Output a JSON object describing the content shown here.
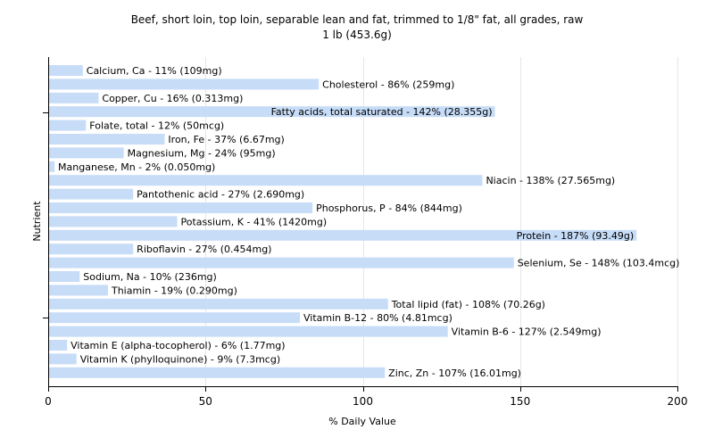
{
  "chart_data": {
    "type": "bar",
    "orientation": "horizontal",
    "title": "Beef, short loin, top loin, separable lean and fat, trimmed to 1/8\" fat, all grades, raw",
    "subtitle": "1 lb (453.6g)",
    "xlabel": "% Daily Value",
    "ylabel": "Nutrient",
    "xlim": [
      0,
      200
    ],
    "xticks": [
      0,
      50,
      100,
      150,
      200
    ],
    "grid": true,
    "bar_color": "#c6dcf7",
    "categories": [
      "Calcium, Ca",
      "Cholesterol",
      "Copper, Cu",
      "Fatty acids, total saturated",
      "Folate, total",
      "Iron, Fe",
      "Magnesium, Mg",
      "Manganese, Mn",
      "Niacin",
      "Pantothenic acid",
      "Phosphorus, P",
      "Potassium, K",
      "Protein",
      "Riboflavin",
      "Selenium, Se",
      "Sodium, Na",
      "Thiamin",
      "Total lipid (fat)",
      "Vitamin B-12",
      "Vitamin B-6",
      "Vitamin E (alpha-tocopherol)",
      "Vitamin K (phylloquinone)",
      "Zinc, Zn"
    ],
    "values": [
      11,
      86,
      16,
      142,
      12,
      37,
      24,
      2,
      138,
      27,
      84,
      41,
      187,
      27,
      148,
      10,
      19,
      108,
      80,
      127,
      6,
      9,
      107
    ],
    "labels": [
      "Calcium, Ca - 11% (109mg)",
      "Cholesterol - 86% (259mg)",
      "Copper, Cu - 16% (0.313mg)",
      "Fatty acids, total saturated - 142% (28.355g)",
      "Folate, total - 12% (50mcg)",
      "Iron, Fe - 37% (6.67mg)",
      "Magnesium, Mg - 24% (95mg)",
      "Manganese, Mn - 2% (0.050mg)",
      "Niacin - 138% (27.565mg)",
      "Pantothenic acid - 27% (2.690mg)",
      "Phosphorus, P - 84% (844mg)",
      "Potassium, K - 41% (1420mg)",
      "Protein - 187% (93.49g)",
      "Riboflavin - 27% (0.454mg)",
      "Selenium, Se - 148% (103.4mcg)",
      "Sodium, Na - 10% (236mg)",
      "Thiamin - 19% (0.290mg)",
      "Total lipid (fat) - 108% (70.26g)",
      "Vitamin B-12 - 80% (4.81mcg)",
      "Vitamin B-6 - 127% (2.549mg)",
      "Vitamin E (alpha-tocopherol) - 6% (1.77mg)",
      "Vitamin K (phylloquinone) - 9% (7.3mcg)",
      "Zinc, Zn - 107% (16.01mg)"
    ],
    "label_inside": [
      false,
      false,
      false,
      true,
      false,
      false,
      false,
      false,
      false,
      false,
      false,
      false,
      true,
      false,
      false,
      false,
      false,
      false,
      false,
      false,
      false,
      false,
      false
    ]
  }
}
